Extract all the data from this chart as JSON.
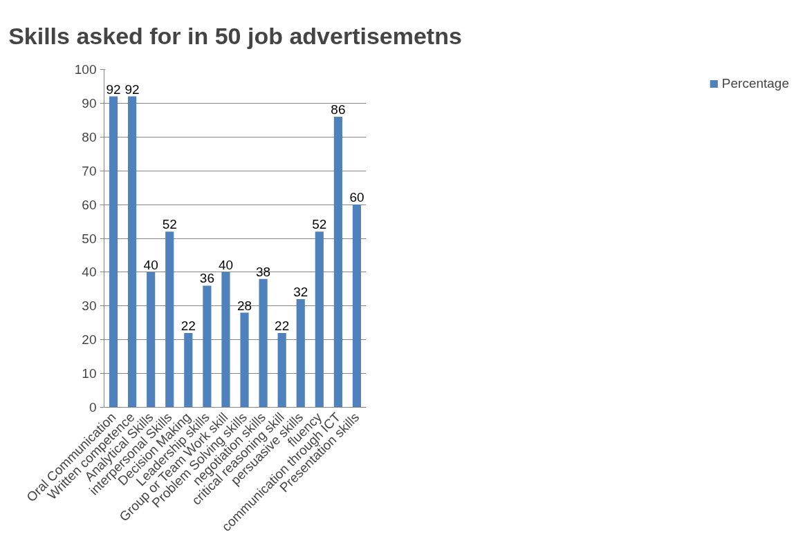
{
  "chart_data": {
    "type": "bar",
    "title": "Skills asked for in 50 job advertisemetns",
    "categories": [
      "Oral Communication",
      "Written competence",
      "Analytical Skills",
      "interpersonal Skills",
      "Decision Making",
      "Leadership skills",
      "Group or Team Work skill",
      "Problem Solving skills",
      "negotiation skills",
      "critical reasoning skill",
      "persuasive skills",
      "fluency",
      "communication through ICT",
      "Presentation skills"
    ],
    "series": [
      {
        "name": "Percentage",
        "color": "#4f81bd",
        "values": [
          92,
          92,
          40,
          52,
          22,
          36,
          40,
          28,
          38,
          22,
          32,
          52,
          86,
          60
        ]
      }
    ],
    "ylim": [
      0,
      100
    ],
    "yticks": [
      0,
      10,
      20,
      30,
      40,
      50,
      60,
      70,
      80,
      90,
      100
    ],
    "grid": "y",
    "legend": "right",
    "data_labels": true
  }
}
